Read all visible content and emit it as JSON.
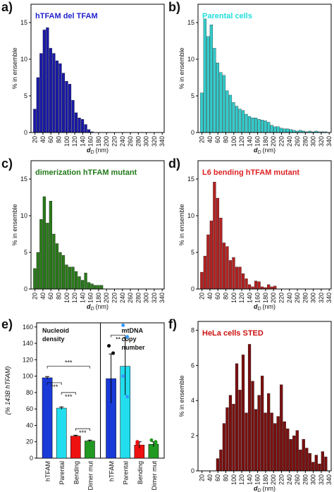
{
  "chart_data": [
    {
      "type": "histogram",
      "panel": "a)",
      "title": "hTFAM del TFAM",
      "title_color": "#2222cc",
      "color": "#1a1aa8",
      "ylabel": "% in ensemble",
      "xlabel": [
        "d",
        "D",
        "(nm)"
      ],
      "bins": [
        16,
        24,
        32,
        40,
        48,
        56,
        64,
        72,
        80,
        88,
        96,
        104,
        112,
        120,
        128,
        136,
        144,
        152,
        160,
        168
      ],
      "values": [
        3.2,
        7.5,
        10.8,
        14.0,
        14.3,
        11.5,
        10.8,
        9.8,
        9.4,
        8.1,
        7.0,
        6.6,
        4.4,
        2.7,
        2.0,
        1.8,
        1.1,
        0.4,
        0.1
      ],
      "xlim": [
        10,
        345
      ],
      "xticks": [
        20,
        40,
        60,
        80,
        100,
        120,
        140,
        160,
        180,
        200,
        220,
        240,
        260,
        280,
        300,
        320,
        340
      ],
      "ylim": [
        0,
        17.5
      ],
      "yticks": [
        0,
        5,
        10,
        15
      ]
    },
    {
      "type": "histogram",
      "panel": "b)",
      "title": "Parental cells",
      "title_color": "#22dddd",
      "color": "#33cccc",
      "ylabel": "% in ensemble",
      "xlabel": [
        "d",
        "D",
        "(nm)"
      ],
      "bins": [
        16,
        24,
        32,
        40,
        48,
        56,
        64,
        72,
        80,
        88,
        96,
        104,
        112,
        120,
        128,
        136,
        144,
        152,
        160,
        168,
        176,
        184,
        192,
        200,
        208,
        216,
        224,
        232,
        240,
        248,
        256,
        264,
        272,
        280,
        288,
        296,
        304,
        312,
        320,
        328,
        336
      ],
      "values": [
        5.4,
        15.5,
        13.1,
        14.7,
        11.5,
        9.5,
        8.2,
        7.8,
        5.7,
        5.1,
        4.1,
        3.6,
        3.2,
        3.0,
        2.5,
        2.2,
        2.0,
        2.0,
        1.8,
        1.7,
        1.6,
        1.4,
        1.0,
        0.8,
        0.8,
        0.6,
        0.5,
        0.5,
        0.4,
        0.3,
        0.2,
        0.3,
        0.2,
        0.1,
        0.2,
        0.1,
        0.2,
        0.1,
        0.1,
        0.1
      ],
      "xlim": [
        10,
        345
      ],
      "xticks": [
        20,
        40,
        60,
        80,
        100,
        120,
        140,
        160,
        180,
        200,
        220,
        240,
        260,
        280,
        300,
        320,
        340
      ],
      "ylim": [
        0,
        17.5
      ],
      "yticks": [
        0,
        5,
        10,
        15
      ]
    },
    {
      "type": "histogram",
      "panel": "c)",
      "title": "dimerization hTFAM mutant",
      "title_color": "#227a1a",
      "color": "#2a7a1a",
      "ylabel": "% in ensemble",
      "xlabel": [
        "d",
        "D",
        "(nm)"
      ],
      "bins": [
        16,
        24,
        32,
        40,
        48,
        56,
        64,
        72,
        80,
        88,
        96,
        104,
        112,
        120,
        128,
        136,
        144,
        152,
        160,
        168,
        176,
        184,
        192
      ],
      "values": [
        2.8,
        5.0,
        9.5,
        12.6,
        9.0,
        12.0,
        7.5,
        6.2,
        5.0,
        4.6,
        3.3,
        3.0,
        3.0,
        2.4,
        1.7,
        1.2,
        2.2,
        0.9,
        0.7,
        0.5,
        0.5,
        0.5
      ],
      "xlim": [
        10,
        345
      ],
      "xticks": [
        20,
        40,
        60,
        80,
        100,
        120,
        140,
        160,
        180,
        200,
        220,
        240,
        260,
        280,
        300,
        320,
        340
      ],
      "ylim": [
        0,
        17.5
      ],
      "yticks": [
        0,
        5,
        10,
        15
      ]
    },
    {
      "type": "histogram",
      "panel": "d)",
      "title": "L6 bending hTFAM mutant",
      "title_color": "#dd2222",
      "color": "#b22222",
      "ylabel": "% in ensemble",
      "xlabel": [
        "d",
        "D",
        "(nm)"
      ],
      "bins": [
        16,
        24,
        32,
        40,
        48,
        56,
        64,
        72,
        80,
        88,
        96,
        104,
        112,
        120,
        128,
        136,
        144,
        152,
        160,
        168,
        176,
        184,
        192,
        200,
        208
      ],
      "values": [
        2.3,
        4.5,
        7.4,
        9.3,
        14.6,
        12.4,
        9.7,
        6.3,
        5.8,
        3.9,
        4.3,
        3.0,
        3.0,
        2.1,
        1.4,
        0.6,
        0.3,
        1.1,
        1.0,
        0.3,
        0.2,
        0.6,
        0.3,
        0.4
      ],
      "xlim": [
        10,
        345
      ],
      "xticks": [
        20,
        40,
        60,
        80,
        100,
        120,
        140,
        160,
        180,
        200,
        220,
        240,
        260,
        280,
        300,
        320,
        340
      ],
      "ylim": [
        0,
        17.5
      ],
      "yticks": [
        0,
        5,
        10,
        15
      ]
    },
    {
      "type": "grouped-bar",
      "panel": "e)",
      "ylabel": "(% 143B hTFAM)",
      "categories": [
        "hTFAM",
        "Parental",
        "Bending",
        "Dimer mut"
      ],
      "colors": [
        "#1a3ad8",
        "#22ddee",
        "#ee1111",
        "#229922"
      ],
      "groups": [
        {
          "title": [
            "Nucleoid",
            "density"
          ],
          "values": [
            98,
            61,
            27,
            21
          ],
          "errors": [
            1.5,
            1.5,
            1,
            1
          ]
        },
        {
          "title": [
            "mtDNA",
            "copy",
            "number"
          ],
          "values": [
            97,
            112,
            16,
            17
          ],
          "errors": [
            30,
            35,
            4,
            3
          ],
          "points": [
            [
              137,
              128,
              73,
              60
            ],
            [
              162,
              148,
              100,
              75
            ],
            [
              20,
              14,
              18,
              12
            ],
            [
              22,
              18,
              14,
              20
            ]
          ]
        }
      ],
      "significance": [
        "***",
        "***",
        "***",
        "***",
        "**"
      ],
      "ylim": [
        0,
        165
      ],
      "yticks": [
        0,
        20,
        40,
        60,
        80,
        100,
        120,
        140,
        160
      ]
    },
    {
      "type": "histogram",
      "panel": "f)",
      "title": "HeLa cells    STED",
      "title_color": "#cc1111",
      "color": "#7a1010",
      "ylabel": "% in ensemble",
      "xlabel": [
        "d",
        "D",
        "(nm)"
      ],
      "bins": [
        56,
        64,
        72,
        80,
        88,
        96,
        104,
        112,
        120,
        128,
        136,
        144,
        152,
        160,
        168,
        176,
        184,
        192,
        200,
        208,
        216,
        224,
        232,
        240,
        248,
        256,
        264,
        272,
        280,
        288,
        296,
        304,
        312,
        320,
        328,
        336
      ],
      "values": [
        0.7,
        1.2,
        2.7,
        3.6,
        4.3,
        3.8,
        6.1,
        4.6,
        6.6,
        3.3,
        7.2,
        5.1,
        3.5,
        4.3,
        5.4,
        3.3,
        4.4,
        3.3,
        2.7,
        3.1,
        4.9,
        2.8,
        2.4,
        1.8,
        2.0,
        2.3,
        1.2,
        1.8,
        1.3,
        1.0,
        0.5,
        0.9,
        0.4,
        1.1,
        0.8
      ],
      "xlim": [
        10,
        345
      ],
      "xticks": [
        20,
        40,
        60,
        80,
        100,
        120,
        140,
        160,
        180,
        200,
        220,
        240,
        260,
        280,
        300,
        320,
        340
      ],
      "ylim": [
        0,
        8.5
      ],
      "yticks": [
        0,
        2,
        4,
        6,
        8
      ]
    }
  ]
}
